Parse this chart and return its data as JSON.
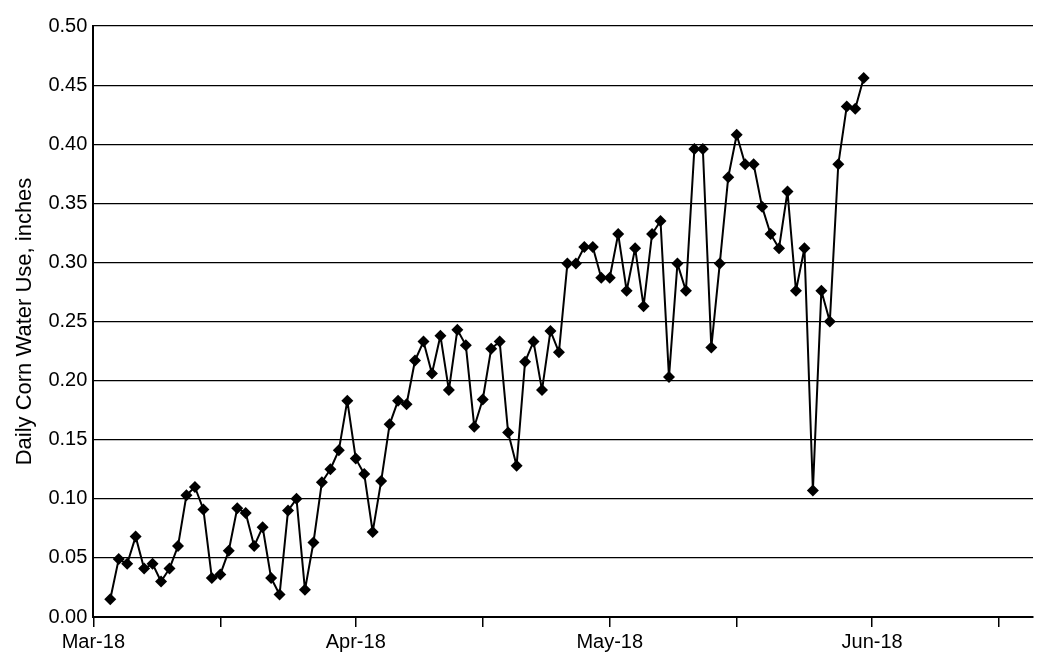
{
  "chart_data": {
    "type": "line",
    "ylabel": "Daily Corn Water Use, inches",
    "marker": "diamond",
    "line_style": "solid",
    "grid": "y",
    "legend": false,
    "x": [
      "--03-20",
      "--03-21",
      "--03-22",
      "--03-23",
      "--03-24",
      "--03-25",
      "--03-26",
      "--03-27",
      "--03-28",
      "--03-29",
      "--03-30",
      "--03-31",
      "--04-01",
      "--04-02",
      "--04-03",
      "--04-04",
      "--04-05",
      "--04-06",
      "--04-07",
      "--04-08",
      "--04-09",
      "--04-10",
      "--04-11",
      "--04-12",
      "--04-13",
      "--04-14",
      "--04-15",
      "--04-16",
      "--04-17",
      "--04-18",
      "--04-19",
      "--04-20",
      "--04-21",
      "--04-22",
      "--04-23",
      "--04-24",
      "--04-25",
      "--04-26",
      "--04-27",
      "--04-28",
      "--04-29",
      "--04-30",
      "--05-01",
      "--05-02",
      "--05-03",
      "--05-04",
      "--05-05",
      "--05-06",
      "--05-07",
      "--05-08",
      "--05-09",
      "--05-10",
      "--05-11",
      "--05-12",
      "--05-13",
      "--05-14",
      "--05-15",
      "--05-16",
      "--05-17",
      "--05-18",
      "--05-19",
      "--05-20",
      "--05-21",
      "--05-22",
      "--05-23",
      "--05-24",
      "--05-25",
      "--05-26",
      "--05-27",
      "--05-28",
      "--05-29",
      "--05-30",
      "--05-31",
      "--06-01",
      "--06-02",
      "--06-03",
      "--06-04",
      "--06-05",
      "--06-06",
      "--06-07",
      "--06-08",
      "--06-09",
      "--06-10",
      "--06-11",
      "--06-12",
      "--06-13",
      "--06-14",
      "--06-15",
      "--06-16",
      "--06-17"
    ],
    "series": [
      {
        "color": "#000000",
        "values": [
          0.015,
          0.049,
          0.045,
          0.068,
          0.041,
          0.045,
          0.03,
          0.041,
          0.06,
          0.103,
          0.11,
          0.091,
          0.033,
          0.036,
          0.056,
          0.092,
          0.088,
          0.06,
          0.076,
          0.033,
          0.019,
          0.09,
          0.1,
          0.023,
          0.063,
          0.114,
          0.125,
          0.141,
          0.183,
          0.134,
          0.121,
          0.072,
          0.115,
          0.163,
          0.183,
          0.18,
          0.217,
          0.233,
          0.206,
          0.238,
          0.192,
          0.243,
          0.23,
          0.161,
          0.184,
          0.227,
          0.233,
          0.156,
          0.128,
          0.216,
          0.233,
          0.192,
          0.242,
          0.224,
          0.299,
          0.299,
          0.313,
          0.313,
          0.287,
          0.287,
          0.324,
          0.276,
          0.312,
          0.263,
          0.324,
          0.335,
          0.203,
          0.299,
          0.276,
          0.396,
          0.396,
          0.228,
          0.299,
          0.372,
          0.408,
          0.383,
          0.383,
          0.347,
          0.324,
          0.312,
          0.36,
          0.276,
          0.312,
          0.107,
          0.276,
          0.25,
          0.383,
          0.432,
          0.43,
          0.456
        ]
      }
    ],
    "xlim": [
      "--03-18",
      "--07-07"
    ],
    "xticks": [
      {
        "value": "--03-18",
        "label": "Mar-18"
      },
      {
        "value": "--04-02",
        "label": null
      },
      {
        "value": "--04-18",
        "label": "Apr-18"
      },
      {
        "value": "--05-03",
        "label": null
      },
      {
        "value": "--05-18",
        "label": "May-18"
      },
      {
        "value": "--06-02",
        "label": null
      },
      {
        "value": "--06-18",
        "label": "Jun-18"
      },
      {
        "value": "--07-03",
        "label": null
      }
    ],
    "ylim": [
      0,
      0.5
    ],
    "yticks": [
      {
        "value": 0,
        "label": "0.00"
      },
      {
        "value": 0.05,
        "label": "0.05"
      },
      {
        "value": 0.1,
        "label": "0.10"
      },
      {
        "value": 0.15,
        "label": "0.15"
      },
      {
        "value": 0.2,
        "label": "0.20"
      },
      {
        "value": 0.25,
        "label": "0.25"
      },
      {
        "value": 0.3,
        "label": "0.30"
      },
      {
        "value": 0.35,
        "label": "0.35"
      },
      {
        "value": 0.4,
        "label": "0.40"
      },
      {
        "value": 0.45,
        "label": "0.45"
      },
      {
        "value": 0.5,
        "label": "0.50"
      }
    ]
  }
}
